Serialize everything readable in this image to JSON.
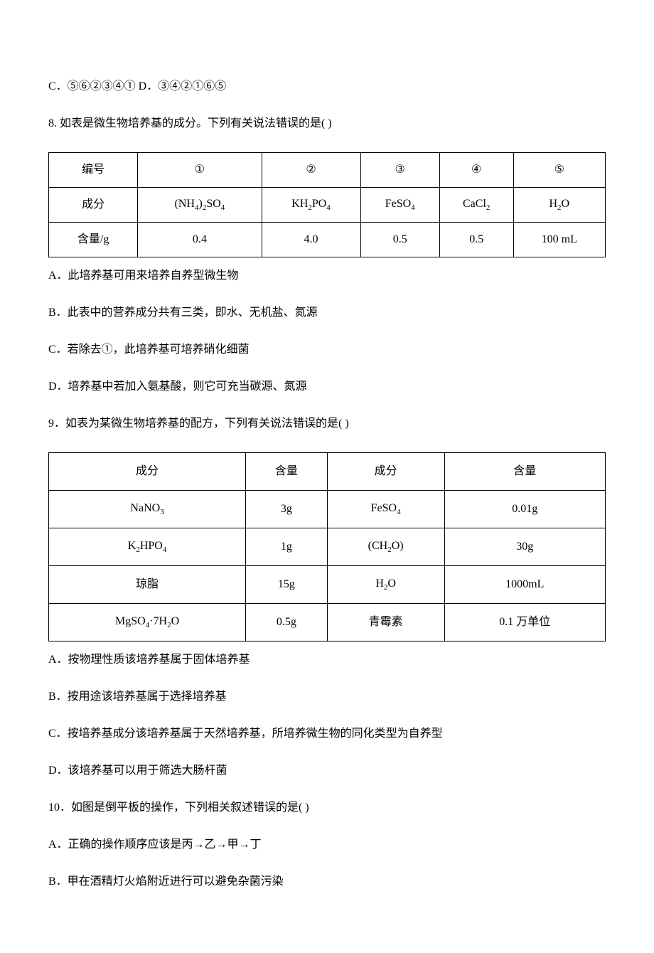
{
  "line_c": "C．⑤⑥②③④① D．③④②①⑥⑤",
  "q8": {
    "stem": "8.  如表是微生物培养基的成分。下列有关说法错误的是(  )",
    "headers": [
      "编号",
      "①",
      "②",
      "③",
      "④",
      "⑤"
    ],
    "row_component_label": "成分",
    "components_html": [
      "(NH<sub>4</sub>)<sub>2</sub>SO<sub>4</sub>",
      "KH<sub>2</sub>PO<sub>4</sub>",
      "FeSO<sub>4</sub>",
      "CaCl<sub>2</sub>",
      "H<sub>2</sub>O"
    ],
    "row_amount_label": "含量/g",
    "amounts": [
      "0.4",
      "4.0",
      "0.5",
      "0.5",
      "100 mL"
    ],
    "optA": "A．此培养基可用来培养自养型微生物",
    "optB": "B．此表中的营养成分共有三类，即水、无机盐、氮源",
    "optC": "C．若除去①，此培养基可培养硝化细菌",
    "optD": "D．培养基中若加入氨基酸，则它可充当碳源、氮源"
  },
  "q9": {
    "stem": "9．如表为某微生物培养基的配方，下列有关说法错误的是(  )",
    "headers": [
      "成分",
      "含量",
      "成分",
      "含量"
    ],
    "rows_html": [
      [
        "NaNO<sub>3</sub>",
        "3g",
        "FeSO<sub>4</sub>",
        "0.01g"
      ],
      [
        "K<sub>2</sub>HPO<sub>4</sub>",
        "1g",
        "(CH<sub>2</sub>O)",
        "30g"
      ],
      [
        "琼脂",
        "15g",
        "H<sub>2</sub>O",
        "1000mL"
      ],
      [
        "MgSO<sub>4</sub>·7H<sub>2</sub>O",
        "0.5g",
        "青霉素",
        "0.1 万单位"
      ]
    ],
    "optA": "A．按物理性质该培养基属于固体培养基",
    "optB": "B．按用途该培养基属于选择培养基",
    "optC": "C．按培养基成分该培养基属于天然培养基，所培养微生物的同化类型为自养型",
    "optD": "D．该培养基可以用于筛选大肠杆菌"
  },
  "q10": {
    "stem": "10．如图是倒平板的操作，下列相关叙述错误的是(  )",
    "optA": "A．正确的操作顺序应该是丙→乙→甲→丁",
    "optB": "B．甲在酒精灯火焰附近进行可以避免杂菌污染"
  }
}
